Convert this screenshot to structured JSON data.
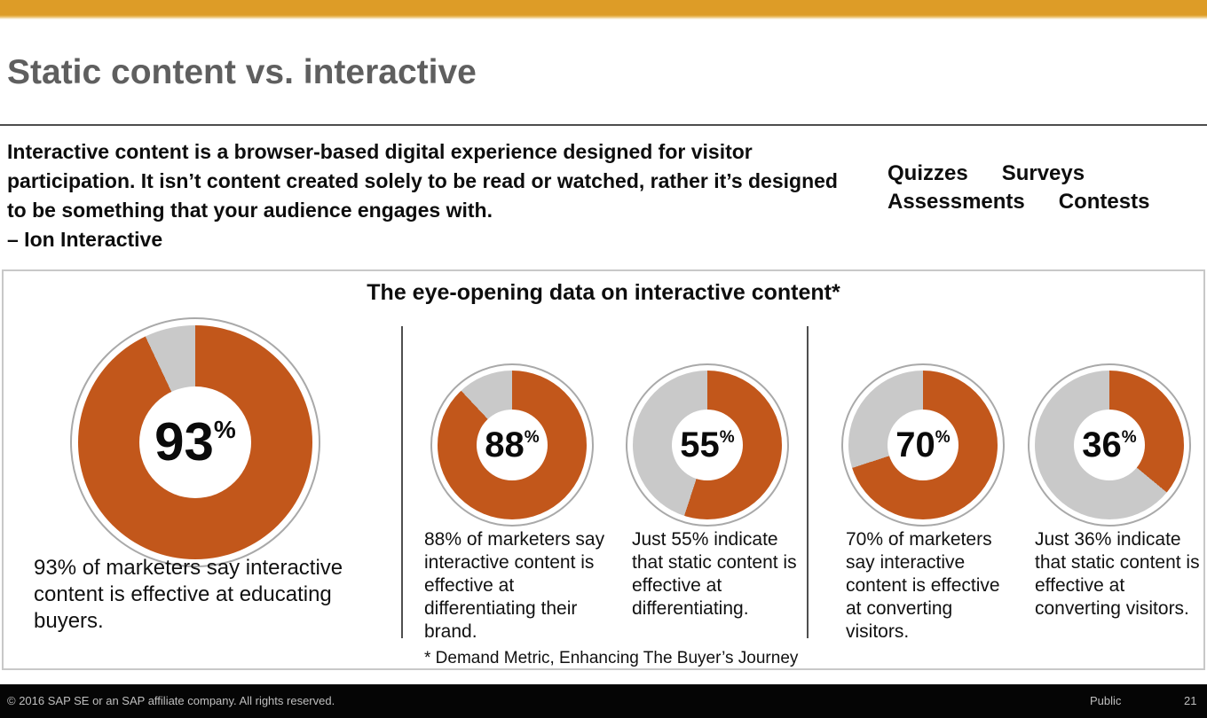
{
  "slide": {
    "title": "Static content vs. interactive",
    "quote": {
      "text": "Interactive content is a browser-based digital experience designed for visitor participation. It isn’t content created solely to be read or watched, rather it’s designed to be something that your audience engages with.",
      "attribution": "– Ion Interactive"
    },
    "keywords": {
      "line1": [
        "Quizzes",
        "Surveys"
      ],
      "line2": [
        "Assessments",
        "Contests"
      ]
    },
    "footnote": "* Demand Metric, Enhancing The Buyer’s Journey",
    "footer": {
      "copyright": "© 2016 SAP SE or an SAP affiliate company. All rights reserved.",
      "classification": "Public",
      "page_number": "21"
    }
  },
  "chart_data": {
    "type": "pie",
    "variant": "donut",
    "title": "The eye-opening data on interactive content*",
    "unit": "%",
    "start_angle_deg": 0,
    "direction": "clockwise",
    "colors": {
      "filled": "#C2571B",
      "remainder": "#C9C9C9",
      "outer_ring": "#A9A9A9",
      "accent_bar": "#DD9C27"
    },
    "series": [
      {
        "value": 93,
        "display": "93",
        "caption": "93% of marketers say interactive content is effective at educating buyers.",
        "size": "large"
      },
      {
        "value": 88,
        "display": "88",
        "caption": "88% of marketers say interactive content is effective at differentiating their brand.",
        "size": "small"
      },
      {
        "value": 55,
        "display": "55",
        "caption": "Just 55% indicate that static content is effective at differentiating.",
        "size": "small"
      },
      {
        "value": 70,
        "display": "70",
        "caption": "70% of marketers say interactive content is effective at converting visitors.",
        "size": "small"
      },
      {
        "value": 36,
        "display": "36",
        "caption": "Just 36% indicate that static content is effective at converting visitors.",
        "size": "small"
      }
    ]
  }
}
